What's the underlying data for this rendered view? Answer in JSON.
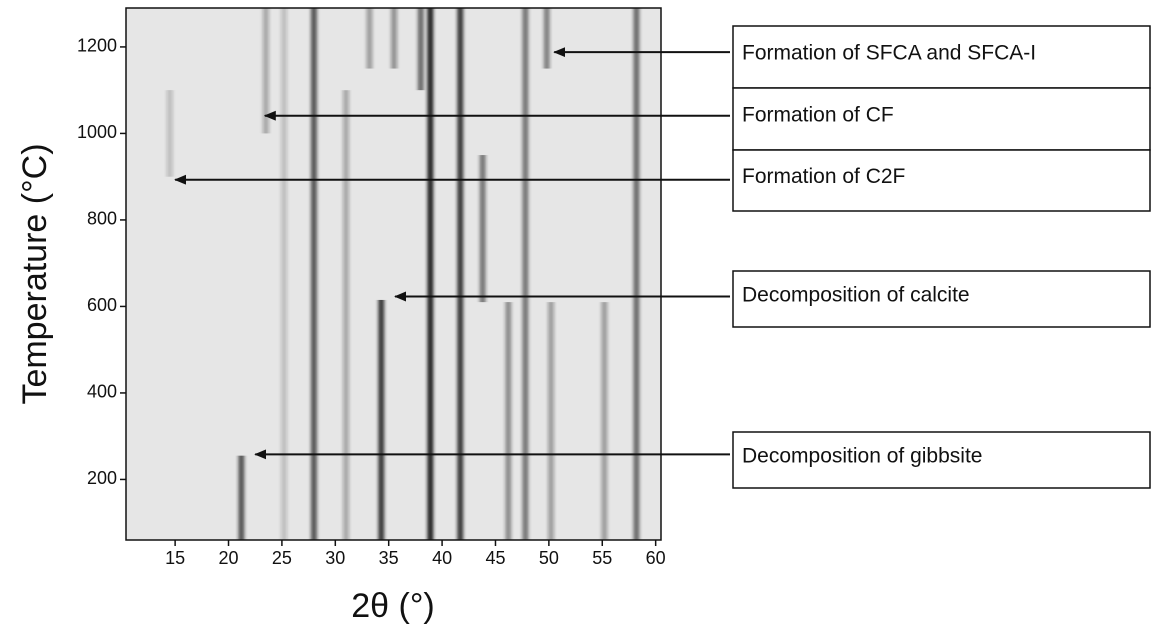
{
  "chart_data": {
    "type": "heatmap",
    "x_label": "2θ (°)",
    "y_label": "Temperature (°C)",
    "xlim": [
      10.4,
      60.5
    ],
    "xticks": [
      15,
      20,
      25,
      30,
      35,
      40,
      45,
      50,
      55,
      60
    ],
    "ylim": [
      60,
      1290
    ],
    "yticks": [
      200,
      400,
      600,
      800,
      1000,
      1200
    ],
    "background": "#e6e6e6",
    "color": "#1e1e1e",
    "peaks": [
      {
        "two_theta": 21.2,
        "t_start": 60,
        "t_end": 255,
        "intensity": 0.7
      },
      {
        "two_theta": 25.2,
        "t_start": 60,
        "t_end": 1290,
        "intensity": 0.2
      },
      {
        "two_theta": 28.0,
        "t_start": 60,
        "t_end": 1290,
        "intensity": 0.7
      },
      {
        "two_theta": 31.0,
        "t_start": 60,
        "t_end": 1100,
        "intensity": 0.3
      },
      {
        "two_theta": 34.3,
        "t_start": 60,
        "t_end": 615,
        "intensity": 0.85
      },
      {
        "two_theta": 38.9,
        "t_start": 60,
        "t_end": 1290,
        "intensity": 0.95
      },
      {
        "two_theta": 41.7,
        "t_start": 60,
        "t_end": 1290,
        "intensity": 0.85
      },
      {
        "two_theta": 43.8,
        "t_start": 610,
        "t_end": 950,
        "intensity": 0.55
      },
      {
        "two_theta": 46.2,
        "t_start": 60,
        "t_end": 610,
        "intensity": 0.45
      },
      {
        "two_theta": 47.8,
        "t_start": 60,
        "t_end": 1290,
        "intensity": 0.55
      },
      {
        "two_theta": 50.2,
        "t_start": 60,
        "t_end": 610,
        "intensity": 0.35
      },
      {
        "two_theta": 55.2,
        "t_start": 60,
        "t_end": 610,
        "intensity": 0.35
      },
      {
        "two_theta": 58.2,
        "t_start": 60,
        "t_end": 1290,
        "intensity": 0.6
      },
      {
        "two_theta": 23.5,
        "t_start": 1000,
        "t_end": 1290,
        "intensity": 0.3
      },
      {
        "two_theta": 14.5,
        "t_start": 900,
        "t_end": 1100,
        "intensity": 0.2
      },
      {
        "two_theta": 33.2,
        "t_start": 1150,
        "t_end": 1290,
        "intensity": 0.35
      },
      {
        "two_theta": 35.5,
        "t_start": 1150,
        "t_end": 1290,
        "intensity": 0.4
      },
      {
        "two_theta": 38.0,
        "t_start": 1100,
        "t_end": 1290,
        "intensity": 0.6
      },
      {
        "two_theta": 49.8,
        "t_start": 1150,
        "t_end": 1290,
        "intensity": 0.5
      }
    ],
    "annotations": [
      {
        "text": "Formation of SFCA and SFCA-I",
        "x": 50.5,
        "y": 1188
      },
      {
        "text": "Formation of CF",
        "x": 23.4,
        "y": 1041
      },
      {
        "text": "Formation of C2F",
        "x": 15,
        "y": 893
      },
      {
        "text": "Decomposition of calcite",
        "x": 35.6,
        "y": 623
      },
      {
        "text": "Decomposition of gibbsite",
        "x": 22.5,
        "y": 258
      }
    ]
  }
}
